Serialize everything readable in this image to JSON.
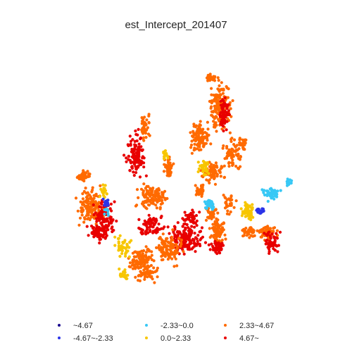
{
  "title": "est_Intercept_201407",
  "legend": [
    {
      "label": "~4.67",
      "color": "#1a0a8f"
    },
    {
      "label": "-4.67~-2.33",
      "color": "#2b34e8"
    },
    {
      "label": "-2.33~0.0",
      "color": "#38c8f5"
    },
    {
      "label": "0.0~2.33",
      "color": "#f7c600"
    },
    {
      "label": "2.33~4.67",
      "color": "#ff6a00"
    },
    {
      "label": "4.67~",
      "color": "#e80000"
    }
  ],
  "chart_data": {
    "type": "scatter",
    "title": "est_Intercept_201407",
    "axes_visible": false,
    "categories": [
      "~4.67",
      "-4.67~-2.33",
      "-2.33~0.0",
      "0.0~2.33",
      "2.33~4.67",
      "4.67~"
    ]
  }
}
